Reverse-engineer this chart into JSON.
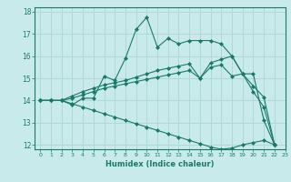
{
  "xlabel": "Humidex (Indice chaleur)",
  "bg_color": "#c8eaea",
  "grid_color": "#b0d8d8",
  "line_color": "#1a7a6a",
  "xlim": [
    -0.5,
    23
  ],
  "ylim": [
    11.8,
    18.2
  ],
  "yticks": [
    12,
    13,
    14,
    15,
    16,
    17,
    18
  ],
  "xticks": [
    0,
    1,
    2,
    3,
    4,
    5,
    6,
    7,
    8,
    9,
    10,
    11,
    12,
    13,
    14,
    15,
    16,
    17,
    18,
    19,
    20,
    21,
    22,
    23
  ],
  "series": [
    {
      "x": [
        0,
        1,
        2,
        3,
        4,
        5,
        6,
        7,
        8,
        9,
        10,
        11,
        12,
        13,
        14,
        15,
        16,
        17,
        18,
        19,
        20,
        21,
        22
      ],
      "y": [
        14.0,
        14.0,
        14.0,
        13.8,
        14.1,
        14.1,
        15.1,
        14.9,
        15.9,
        17.2,
        17.75,
        16.4,
        16.8,
        16.55,
        16.7,
        16.7,
        16.7,
        16.55,
        16.0,
        15.2,
        15.2,
        13.1,
        12.0
      ]
    },
    {
      "x": [
        0,
        1,
        2,
        3,
        4,
        5,
        6,
        7,
        8,
        9,
        10,
        11,
        12,
        13,
        14,
        15,
        16,
        17,
        18,
        19,
        20,
        21,
        22
      ],
      "y": [
        14.0,
        14.0,
        14.0,
        14.2,
        14.4,
        14.55,
        14.7,
        14.8,
        14.9,
        15.05,
        15.2,
        15.35,
        15.45,
        15.55,
        15.65,
        15.0,
        15.7,
        15.85,
        16.0,
        15.2,
        14.65,
        14.15,
        12.0
      ]
    },
    {
      "x": [
        0,
        1,
        2,
        3,
        4,
        5,
        6,
        7,
        8,
        9,
        10,
        11,
        12,
        13,
        14,
        15,
        16,
        17,
        18,
        19,
        20,
        21,
        22
      ],
      "y": [
        14.0,
        14.0,
        14.0,
        14.1,
        14.25,
        14.4,
        14.55,
        14.65,
        14.75,
        14.85,
        14.95,
        15.05,
        15.15,
        15.25,
        15.35,
        15.0,
        15.5,
        15.6,
        15.1,
        15.2,
        14.4,
        13.7,
        12.0
      ]
    },
    {
      "x": [
        0,
        1,
        2,
        3,
        4,
        5,
        6,
        7,
        8,
        9,
        10,
        11,
        12,
        13,
        14,
        15,
        16,
        17,
        18,
        19,
        20,
        21,
        22
      ],
      "y": [
        14.0,
        14.0,
        14.0,
        13.85,
        13.7,
        13.55,
        13.4,
        13.25,
        13.1,
        12.95,
        12.8,
        12.65,
        12.5,
        12.35,
        12.2,
        12.05,
        11.9,
        11.8,
        11.85,
        12.0,
        12.1,
        12.2,
        12.0
      ]
    }
  ]
}
